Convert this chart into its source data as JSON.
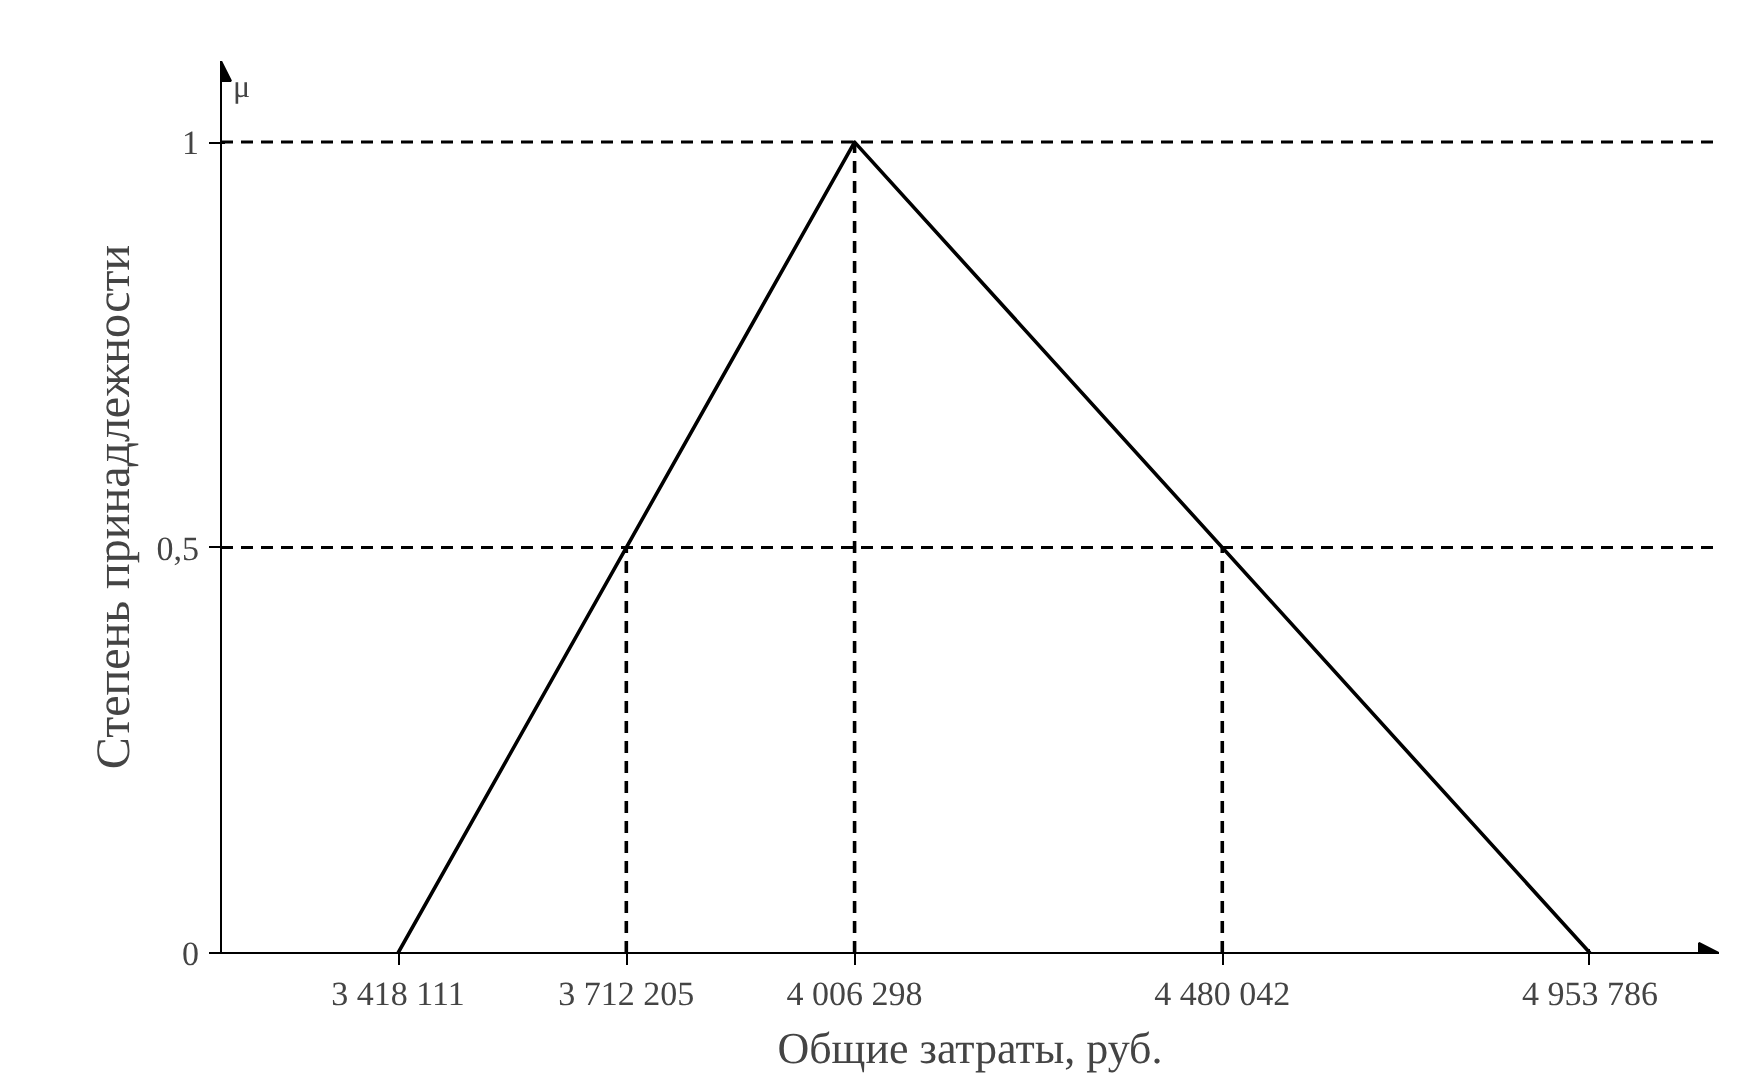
{
  "chart_data": {
    "type": "line",
    "xlabel": "Общие затраты, руб.",
    "ylabel": "Степень принадлежности",
    "annotations": [
      "μ"
    ],
    "xlim": [
      3190000,
      5120000
    ],
    "ylim": [
      0,
      1.1
    ],
    "xticks": [
      {
        "value": 3418111,
        "label": "3 418 111"
      },
      {
        "value": 3712205,
        "label": "3 712 205"
      },
      {
        "value": 4006298,
        "label": "4 006 298"
      },
      {
        "value": 4480042,
        "label": "4 480 042"
      },
      {
        "value": 4953786,
        "label": "4 953 786"
      }
    ],
    "yticks": [
      0,
      {
        "value": 0.5,
        "label": "0,5"
      },
      1
    ],
    "grid": false,
    "marker": "none",
    "ref_lines": [
      {
        "axis": "y",
        "value": 1,
        "color": "#000000",
        "line_style": "dashed"
      },
      {
        "axis": "y",
        "value": 0.5,
        "color": "#000000",
        "line_style": "dashed"
      }
    ],
    "series": [
      {
        "color": "#000000",
        "line_style": "solid",
        "x": [
          3418111,
          4006298,
          4953786
        ],
        "values": [
          0,
          1,
          0
        ]
      },
      {
        "color": "#000000",
        "line_style": "dashed",
        "x": [
          3712205,
          3712205
        ],
        "values": [
          0,
          0.5
        ]
      },
      {
        "color": "#000000",
        "line_style": "dashed",
        "x": [
          4006298,
          4006298
        ],
        "values": [
          0,
          1
        ]
      },
      {
        "color": "#000000",
        "line_style": "dashed",
        "x": [
          4480042,
          4480042
        ],
        "values": [
          0,
          0.5
        ]
      }
    ]
  }
}
